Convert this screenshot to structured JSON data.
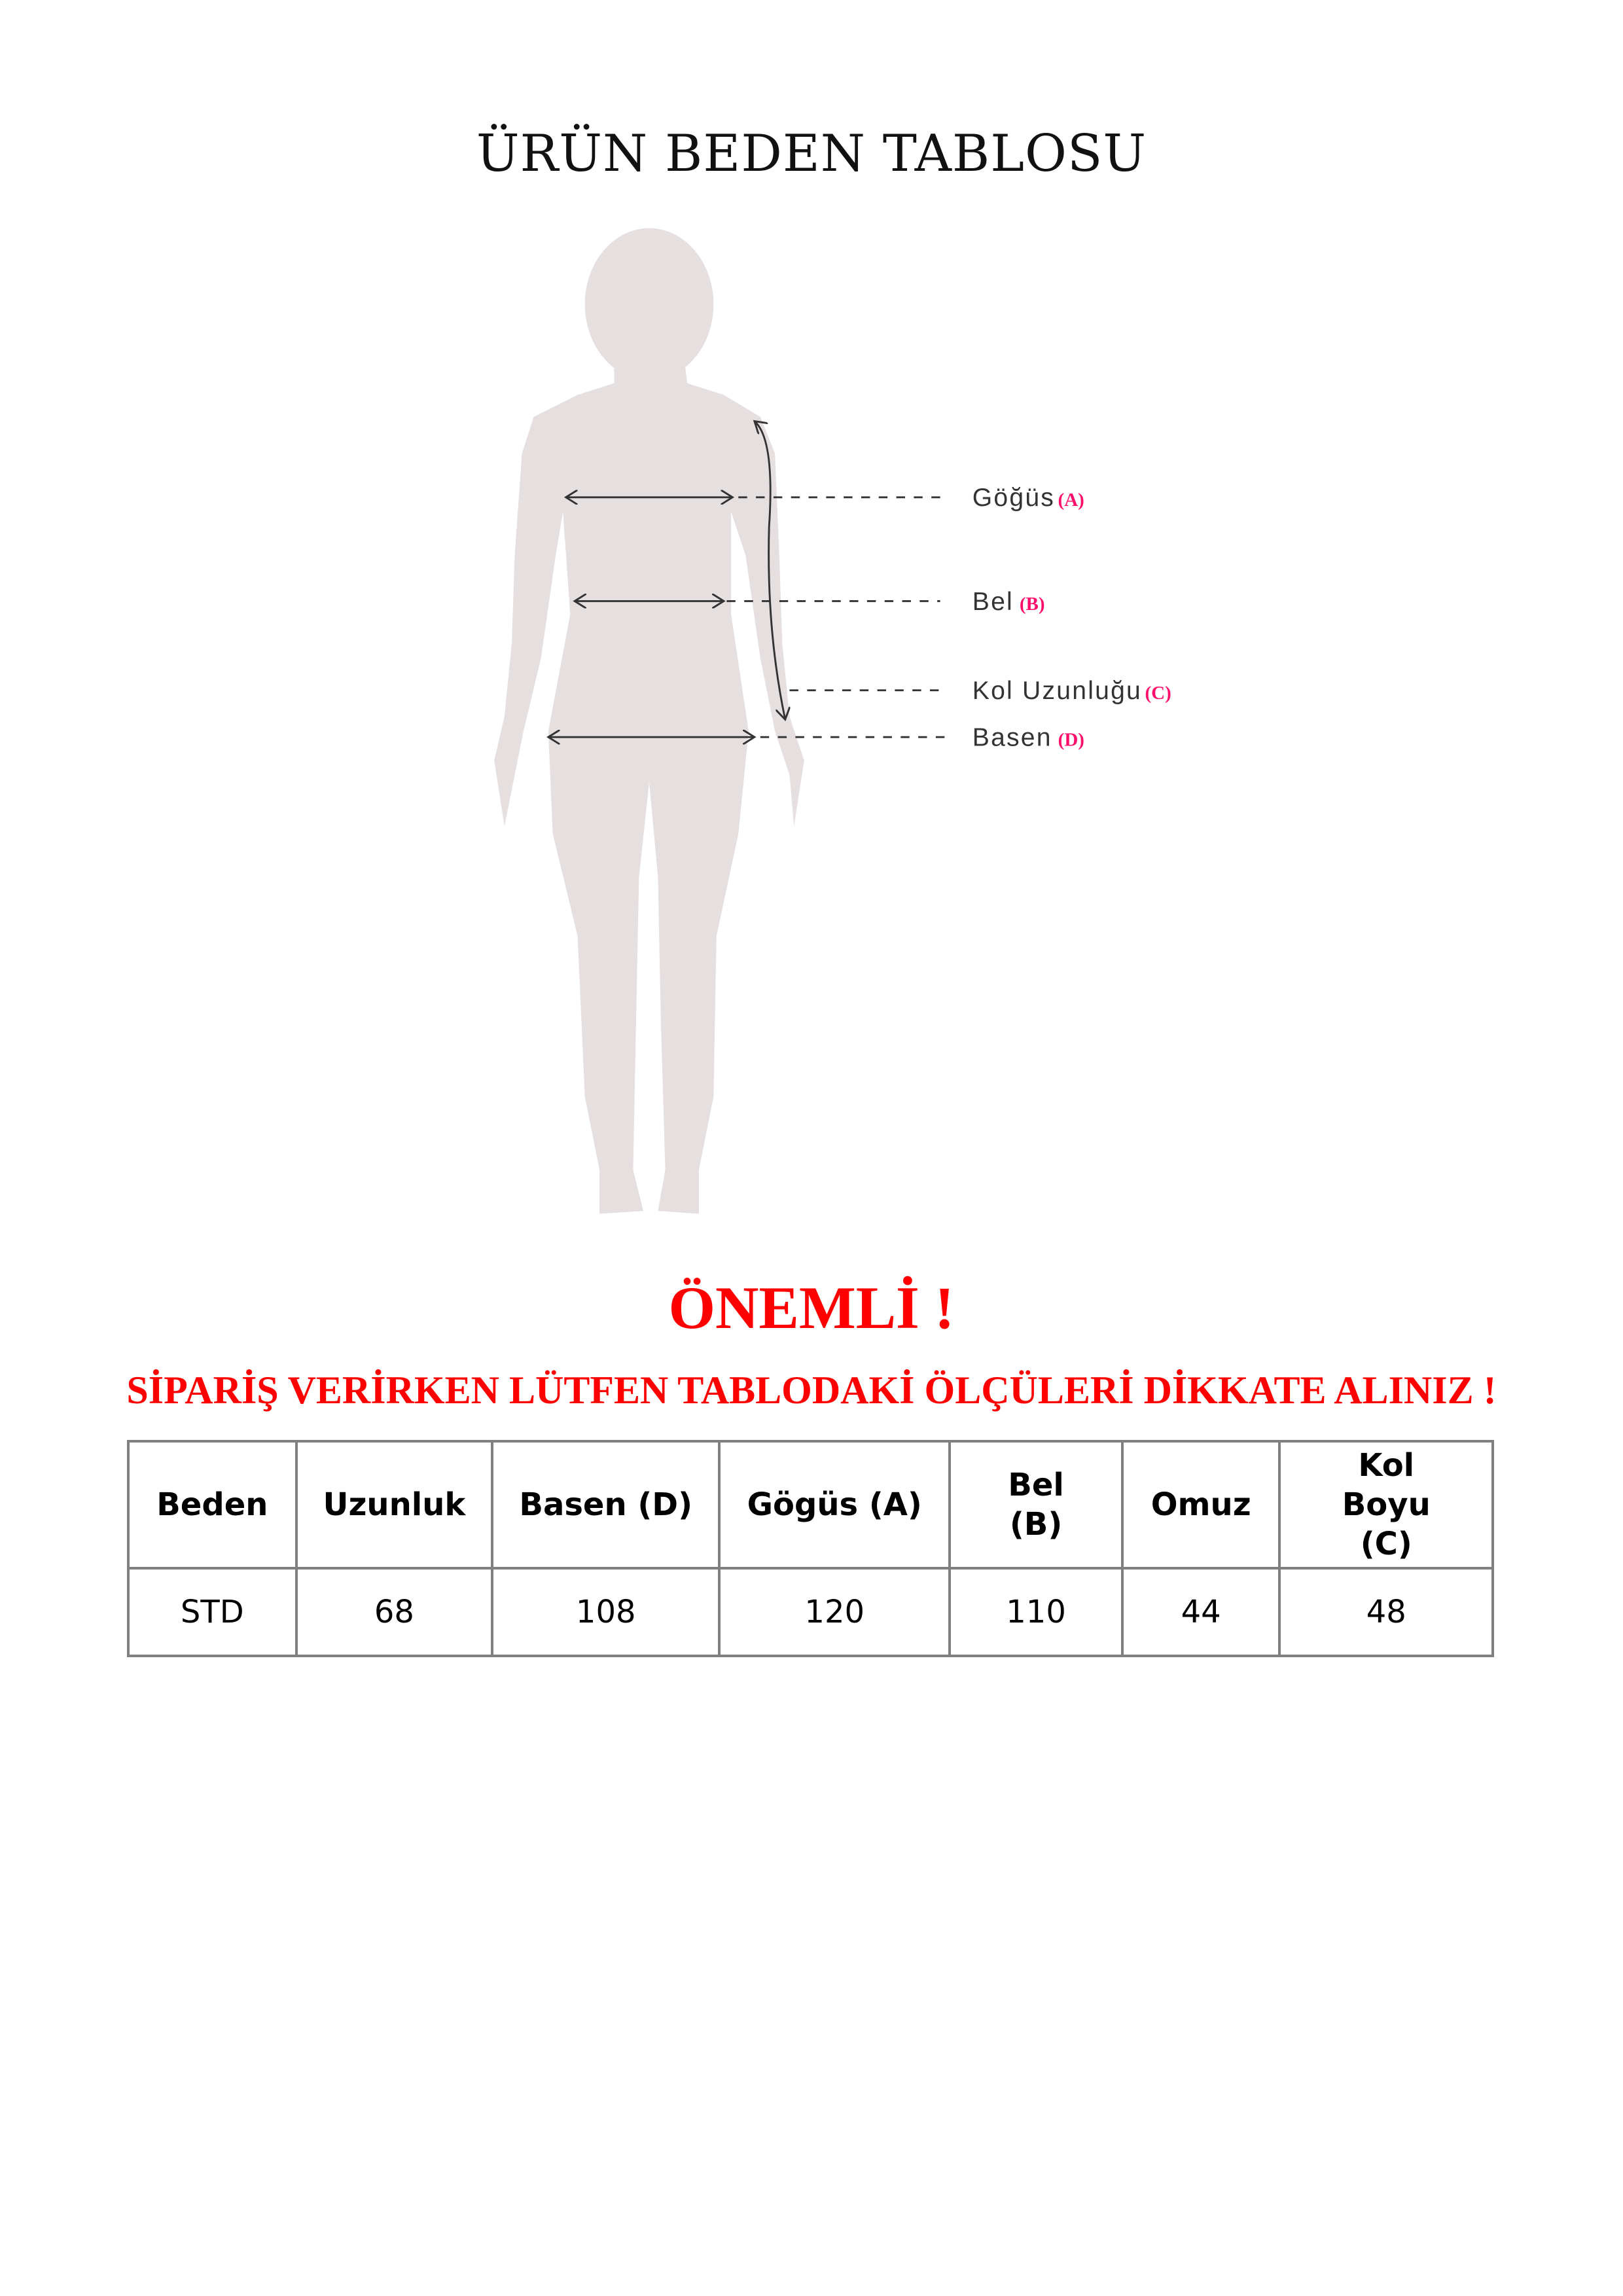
{
  "title": "ÜRÜN BEDEN TABLOSU",
  "figure": {
    "labels": [
      {
        "name": "Göğüs",
        "key": "(A)"
      },
      {
        "name": "Bel",
        "key": "(B)"
      },
      {
        "name": "Kol Uzunluğu",
        "key": "(C)"
      },
      {
        "name": "Basen",
        "key": "(D)"
      }
    ],
    "colors": {
      "silhouette": "#e6dfe0",
      "key": "#ff0f6b"
    }
  },
  "important": "ÖNEMLİ !",
  "notice": "SİPARİŞ VERİRKEN LÜTFEN TABLODAKİ ÖLÇÜLERİ DİKKATE ALINIZ !",
  "table": {
    "headers": [
      "Beden",
      "Uzunluk",
      "Basen (D)",
      "Gögüs (A)",
      "Bel (B)",
      "Omuz",
      "Kol Boyu (C)"
    ],
    "rows": [
      [
        "STD",
        "68",
        "108",
        "120",
        "110",
        "44",
        "48"
      ]
    ]
  }
}
